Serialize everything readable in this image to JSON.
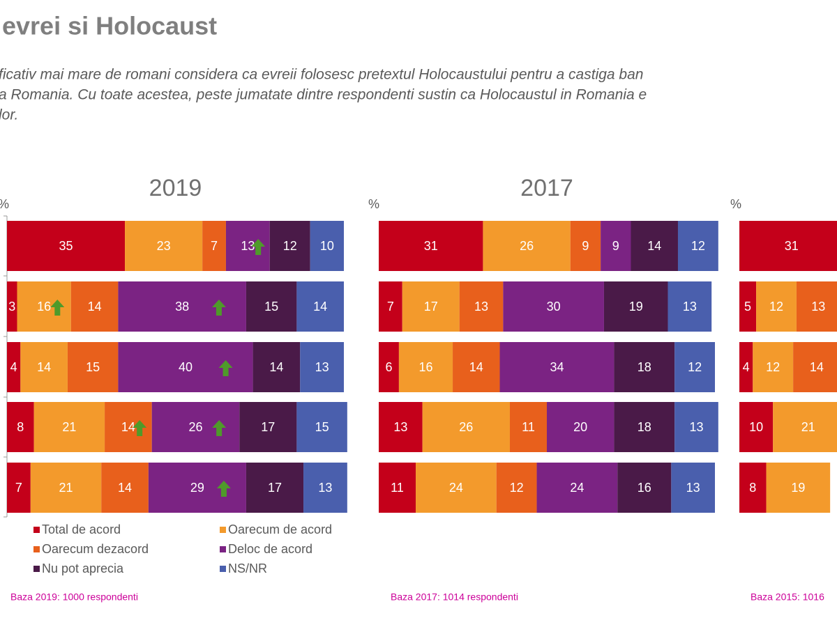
{
  "title": "evrei si Holocaust",
  "subtitle_lines": [
    "ficativ mai mare de romani considera ca evreii folosesc pretextul Holocaustului pentru a castiga ban",
    "a Romania. Cu toate acestea, peste jumatate dintre respondenti sustin ca Holocaustul in Romania e",
    "lor."
  ],
  "chart_data": [
    {
      "type": "stacked-bar-horizontal",
      "title": "2019",
      "y_label": "%",
      "note": "Baza 2019: 1000 respondenti",
      "categories": [
        null,
        null,
        null,
        null,
        null
      ],
      "xlim": [
        0,
        100
      ],
      "legend": true,
      "axis_line": true,
      "series": [
        {
          "name": "Total de acord",
          "color": "#c4001a",
          "values": [
            35,
            3,
            4,
            8,
            7
          ]
        },
        {
          "name": "Oarecum de acord",
          "color": "#f39a2c",
          "values": [
            23,
            16,
            14,
            21,
            21
          ]
        },
        {
          "name": "Oarecum dezacord",
          "color": "#e8601c",
          "values": [
            7,
            14,
            15,
            14,
            14
          ]
        },
        {
          "name": "Deloc de acord",
          "color": "#7b2383",
          "values": [
            13,
            38,
            40,
            26,
            29
          ]
        },
        {
          "name": "Nu pot aprecia",
          "color": "#4a1a48",
          "values": [
            12,
            15,
            14,
            17,
            17
          ]
        },
        {
          "name": "NS/NR",
          "color": "#4a5fad",
          "values": [
            10,
            14,
            13,
            15,
            13
          ]
        }
      ],
      "up_arrows": [
        [
          0,
          3
        ],
        [
          1,
          1
        ],
        [
          1,
          3
        ],
        [
          2,
          3
        ],
        [
          3,
          2
        ],
        [
          3,
          3
        ],
        [
          4,
          3
        ]
      ]
    },
    {
      "type": "stacked-bar-horizontal",
      "title": "2017",
      "y_label": "%",
      "note": "Baza 2017: 1014 respondenti",
      "categories": [
        null,
        null,
        null,
        null,
        null
      ],
      "xlim": [
        0,
        100
      ],
      "legend": false,
      "axis_line": false,
      "series": [
        {
          "name": "Total de acord",
          "color": "#c4001a",
          "values": [
            31,
            7,
            6,
            13,
            11
          ]
        },
        {
          "name": "Oarecum de acord",
          "color": "#f39a2c",
          "values": [
            26,
            17,
            16,
            26,
            24
          ]
        },
        {
          "name": "Oarecum dezacord",
          "color": "#e8601c",
          "values": [
            9,
            13,
            14,
            11,
            12
          ]
        },
        {
          "name": "Deloc de acord",
          "color": "#7b2383",
          "values": [
            9,
            30,
            34,
            20,
            24
          ]
        },
        {
          "name": "Nu pot aprecia",
          "color": "#4a1a48",
          "values": [
            14,
            19,
            18,
            18,
            16
          ]
        },
        {
          "name": "NS/NR",
          "color": "#4a5fad",
          "values": [
            12,
            13,
            12,
            13,
            13
          ]
        }
      ],
      "up_arrows": []
    },
    {
      "type": "stacked-bar-horizontal",
      "y_label": "%",
      "note": "Baza 2015: 1016",
      "categories": [
        null,
        null,
        null,
        null,
        null
      ],
      "xlim": [
        0,
        100
      ],
      "legend": false,
      "axis_line": false,
      "series": [
        {
          "name": "Total de acord",
          "color": "#c4001a",
          "values": [
            31,
            5,
            4,
            10,
            8
          ]
        },
        {
          "name": "Oarecum de acord",
          "color": "#f39a2c",
          "values": [
            null,
            12,
            12,
            21,
            19
          ]
        },
        {
          "name": "Oarecum dezacord",
          "color": "#e8601c",
          "values": [
            null,
            13,
            14,
            null,
            null
          ]
        }
      ],
      "up_arrows": []
    }
  ]
}
